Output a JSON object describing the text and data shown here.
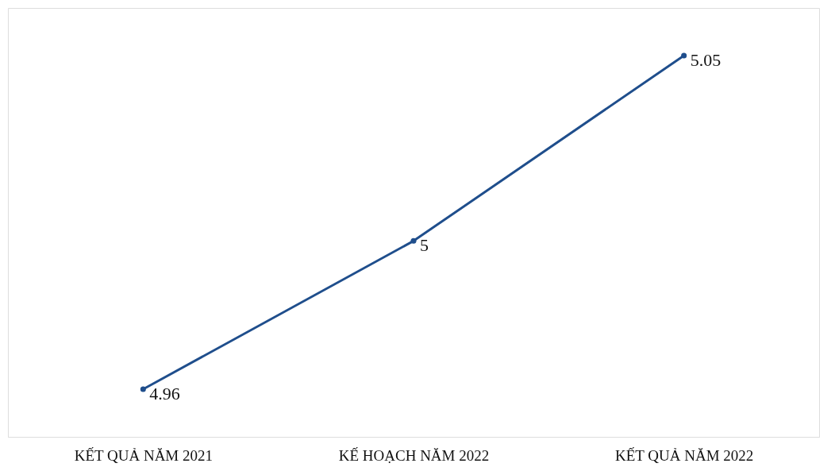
{
  "chart_data": {
    "type": "line",
    "categories": [
      "KẾT QUẢ NĂM 2021",
      "KẾ HOẠCH NĂM 2022",
      "KẾT QUẢ NĂM 2022"
    ],
    "series": [
      {
        "color": "#1f4e8c",
        "values": [
          4.96,
          5,
          5.05
        ]
      }
    ],
    "data_labels": true,
    "marker": "circle",
    "grid": false,
    "legend": false,
    "tick_labels": "x"
  }
}
